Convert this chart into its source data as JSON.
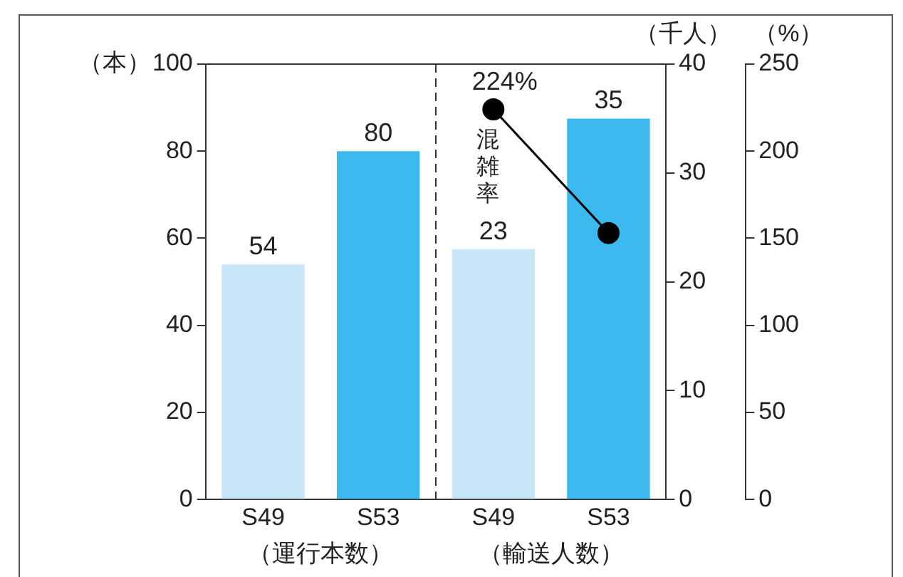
{
  "chart_data": {
    "type": "bar",
    "categories": [
      "S49",
      "S53",
      "S49",
      "S53"
    ],
    "annotations": [
      "（運行本数）",
      "（輸送人数）"
    ],
    "ylabel": "（本）",
    "y2label": "（千人）",
    "y3label": "（%）",
    "ylim": [
      0,
      100
    ],
    "yticks": [
      0,
      20,
      40,
      60,
      80,
      100
    ],
    "y2lim": [
      0,
      40
    ],
    "y2ticks": [
      0,
      10,
      20,
      30,
      40
    ],
    "y3lim": [
      0,
      250
    ],
    "y3ticks": [
      0,
      50,
      100,
      150,
      200,
      250
    ],
    "series": [
      {
        "colors": [
          "#c8e6f8",
          "#3cb9ee",
          null,
          null
        ],
        "values": [
          54,
          80,
          null,
          null
        ],
        "value_labels": [
          "54",
          "80",
          null,
          null
        ]
      },
      {
        "colors": [
          null,
          null,
          "#c8e6f8",
          "#3cb9ee"
        ],
        "values": [
          null,
          null,
          23,
          35
        ],
        "axis": "y2",
        "value_labels": [
          null,
          null,
          "23",
          "35"
        ]
      },
      {
        "type": "line",
        "name": "混雑率",
        "color": "#000000",
        "values": [
          null,
          null,
          224,
          153
        ],
        "axis": "y3",
        "marker": "circle",
        "line_style": "solid",
        "value_labels": [
          null,
          null,
          "224%",
          null
        ]
      }
    ],
    "grid": false,
    "legend": false
  }
}
